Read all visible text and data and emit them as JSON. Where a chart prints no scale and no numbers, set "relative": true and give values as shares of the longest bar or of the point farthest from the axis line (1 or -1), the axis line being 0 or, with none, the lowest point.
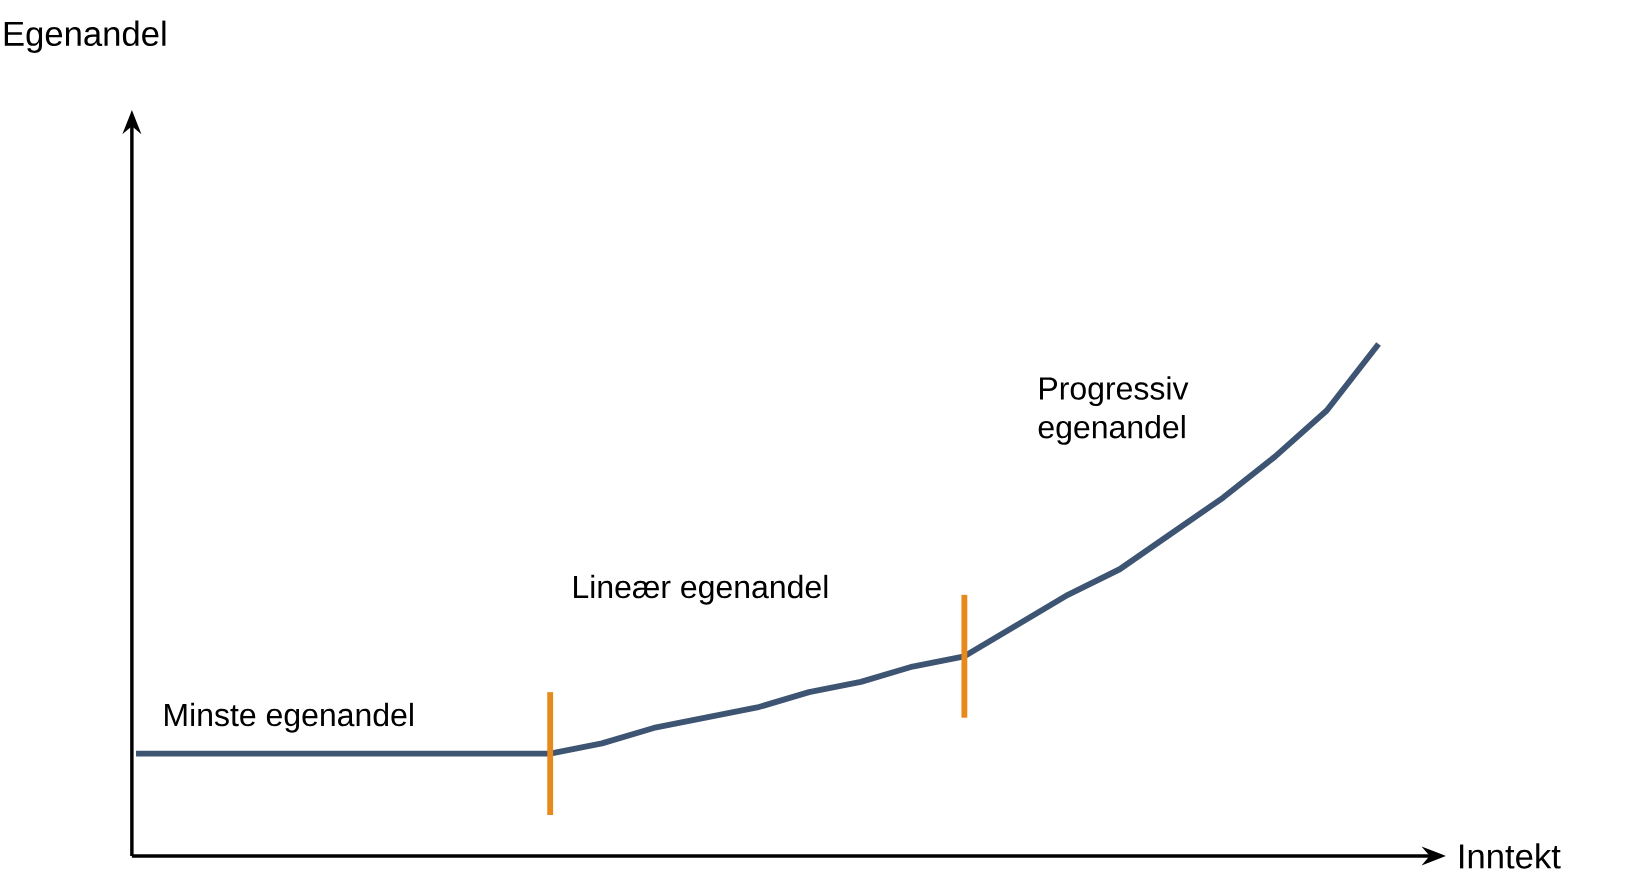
{
  "chart_data": {
    "type": "line",
    "relative": true,
    "xlabel": "Inntekt",
    "categories": [
      null,
      null,
      null,
      null,
      null,
      null,
      null,
      null,
      null,
      null,
      null,
      null,
      null,
      null,
      null,
      null,
      null,
      null,
      null,
      null,
      null,
      null,
      null,
      null,
      null
    ],
    "series": [
      {
        "color": "#3d5573",
        "values": [
          0.2,
          0.2,
          0.2,
          0.2,
          0.2,
          0.2,
          0.2,
          0.2,
          0.2,
          0.22,
          0.25,
          0.27,
          0.29,
          0.32,
          0.34,
          0.37,
          0.39,
          0.45,
          0.51,
          0.56,
          0.63,
          0.7,
          0.78,
          0.87,
          1.0
        ]
      }
    ],
    "annotations": [
      "Minste egenandel",
      "Lineær egenandel",
      "Progressiv egenandel",
      "Egenandel"
    ],
    "marker": "none",
    "line_style": "solid"
  }
}
